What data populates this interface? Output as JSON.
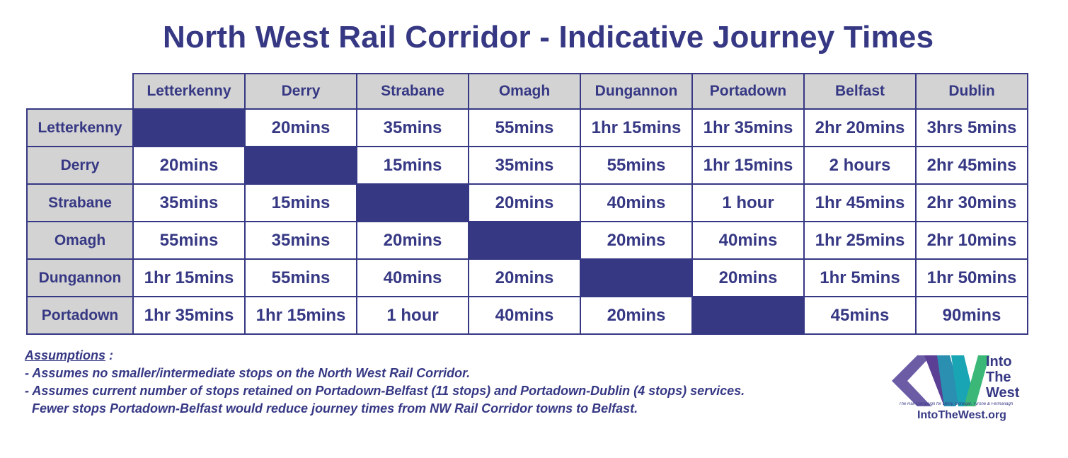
{
  "title": "North West Rail Corridor - Indicative Journey Times",
  "columns": [
    "Letterkenny",
    "Derry",
    "Strabane",
    "Omagh",
    "Dungannon",
    "Portadown",
    "Belfast",
    "Dublin"
  ],
  "rows": [
    {
      "label": "Letterkenny",
      "cells": [
        "",
        "20mins",
        "35mins",
        "55mins",
        "1hr 15mins",
        "1hr 35mins",
        "2hr 20mins",
        "3hrs 5mins"
      ]
    },
    {
      "label": "Derry",
      "cells": [
        "20mins",
        "",
        "15mins",
        "35mins",
        "55mins",
        "1hr 15mins",
        "2 hours",
        "2hr 45mins"
      ]
    },
    {
      "label": "Strabane",
      "cells": [
        "35mins",
        "15mins",
        "",
        "20mins",
        "40mins",
        "1 hour",
        "1hr 45mins",
        "2hr 30mins"
      ]
    },
    {
      "label": "Omagh",
      "cells": [
        "55mins",
        "35mins",
        "20mins",
        "",
        "20mins",
        "40mins",
        "1hr 25mins",
        "2hr 10mins"
      ]
    },
    {
      "label": "Dungannon",
      "cells": [
        "1hr 15mins",
        "55mins",
        "40mins",
        "20mins",
        "",
        "20mins",
        "1hr 5mins",
        "1hr 50mins"
      ]
    },
    {
      "label": "Portadown",
      "cells": [
        "1hr 35mins",
        "1hr 15mins",
        "1 hour",
        "40mins",
        "20mins",
        "",
        "45mins",
        "90mins"
      ]
    }
  ],
  "notes": {
    "heading": "Assumptions",
    "heading_suffix": " :",
    "lines": [
      "- Assumes no smaller/intermediate stops on the North West Rail Corridor.",
      "- Assumes current number of stops retained on Portadown-Belfast (11 stops) and Portadown-Dublin (4 stops) services.",
      "  Fewer stops Portadown-Belfast would reduce journey times from NW Rail Corridor towns to Belfast."
    ]
  },
  "logo": {
    "line1": "Into",
    "line2": "The",
    "line3": "West",
    "tagline": "The Rail Campaign for Derry, Donegal, Tyrone & Fermanagh",
    "url": "IntoTheWest.org"
  },
  "colors": {
    "navy": "#363884",
    "header_gray": "#d3d3d3",
    "logo_teal": "#19a5b4",
    "logo_purple": "#5b3f95",
    "logo_green": "#3bb878"
  }
}
